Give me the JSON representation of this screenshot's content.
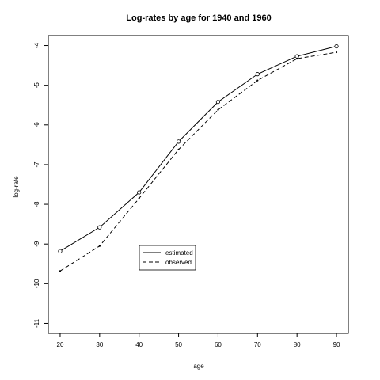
{
  "chart_data": {
    "type": "line",
    "title": "Log-rates by age for 1940 and 1960",
    "xlabel": "age",
    "ylabel": "log-rate",
    "xlim": [
      17,
      93
    ],
    "ylim": [
      -11.25,
      -3.75
    ],
    "x_ticks": [
      20,
      30,
      40,
      50,
      60,
      70,
      80,
      90
    ],
    "x_tick_labels": [
      "20",
      "30",
      "40",
      "50",
      "60",
      "70",
      "80",
      "90"
    ],
    "y_ticks": [
      -4,
      -5,
      -6,
      -7,
      -8,
      -9,
      -10,
      -11
    ],
    "y_tick_labels": [
      "-4",
      "-5",
      "-6",
      "-7",
      "-8",
      "-9",
      "-10",
      "-11"
    ],
    "x": [
      20,
      30,
      40,
      50,
      60,
      70,
      80,
      90
    ],
    "series": [
      {
        "name": "estimated",
        "line_style": "solid",
        "marker": "open-circle",
        "values": [
          -9.18,
          -8.58,
          -7.7,
          -6.42,
          -5.42,
          -4.72,
          -4.27,
          -4.02
        ]
      },
      {
        "name": "observed",
        "line_style": "dashed",
        "marker": "dot",
        "values": [
          -9.68,
          -9.05,
          -7.85,
          -6.62,
          -5.62,
          -4.88,
          -4.33,
          -4.17
        ]
      }
    ],
    "legend": {
      "position": "lower-left-center",
      "entries": [
        "estimated",
        "observed"
      ]
    },
    "grid": false
  }
}
